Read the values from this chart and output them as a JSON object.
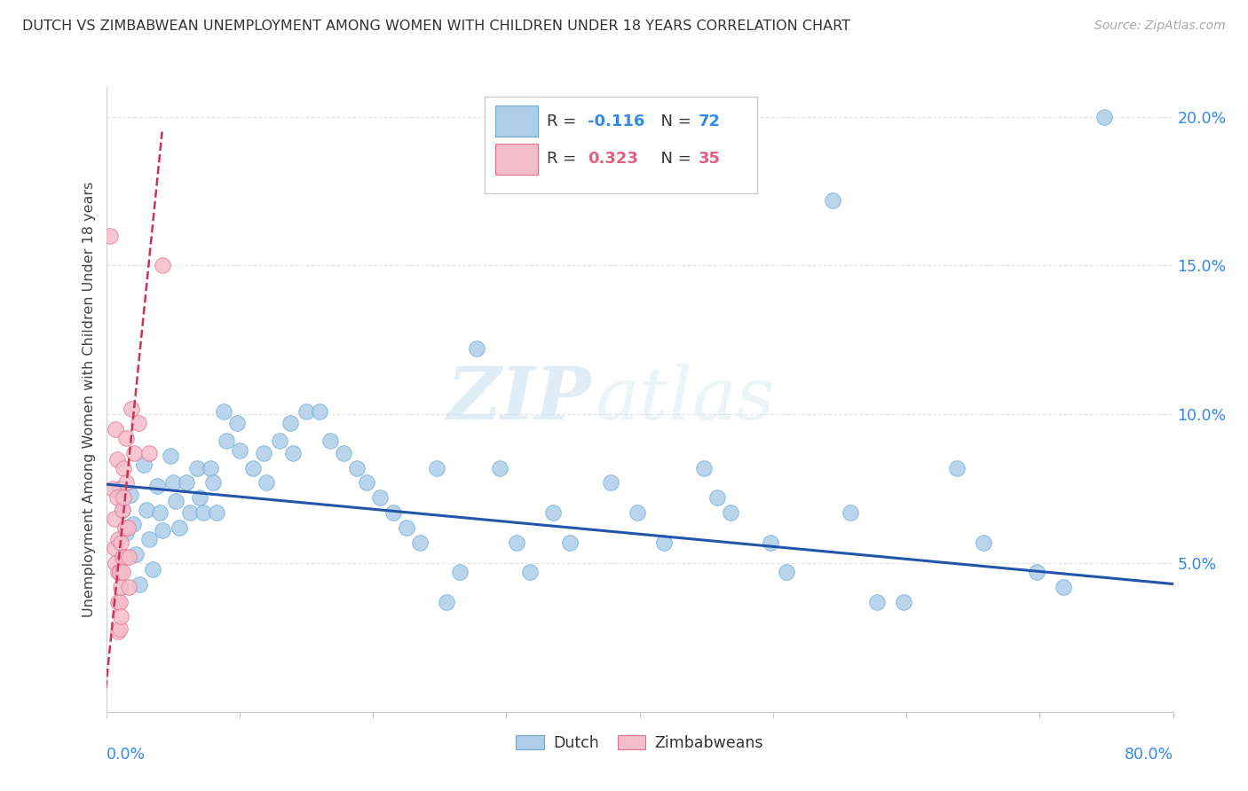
{
  "title": "DUTCH VS ZIMBABWEAN UNEMPLOYMENT AMONG WOMEN WITH CHILDREN UNDER 18 YEARS CORRELATION CHART",
  "source": "Source: ZipAtlas.com",
  "ylabel": "Unemployment Among Women with Children Under 18 years",
  "xlim": [
    0.0,
    0.8
  ],
  "ylim": [
    0.0,
    0.21
  ],
  "yticks": [
    0.05,
    0.1,
    0.15,
    0.2
  ],
  "ytick_labels": [
    "5.0%",
    "10.0%",
    "15.0%",
    "20.0%"
  ],
  "dutch_R": -0.116,
  "dutch_N": 72,
  "zimb_R": 0.323,
  "zimb_N": 35,
  "dutch_color": "#aecde8",
  "dutch_edge": "#6aaad4",
  "zimb_color": "#f5bccb",
  "zimb_edge": "#e07090",
  "trend_dutch_color": "#2255aa",
  "trend_zimb_color": "#cc3355",
  "dutch_scatter": [
    [
      0.01,
      0.075
    ],
    [
      0.012,
      0.068
    ],
    [
      0.015,
      0.06
    ],
    [
      0.018,
      0.073
    ],
    [
      0.02,
      0.063
    ],
    [
      0.022,
      0.053
    ],
    [
      0.025,
      0.043
    ],
    [
      0.028,
      0.083
    ],
    [
      0.03,
      0.068
    ],
    [
      0.032,
      0.058
    ],
    [
      0.035,
      0.048
    ],
    [
      0.038,
      0.076
    ],
    [
      0.04,
      0.067
    ],
    [
      0.042,
      0.061
    ],
    [
      0.048,
      0.086
    ],
    [
      0.05,
      0.077
    ],
    [
      0.052,
      0.071
    ],
    [
      0.055,
      0.062
    ],
    [
      0.06,
      0.077
    ],
    [
      0.063,
      0.067
    ],
    [
      0.068,
      0.082
    ],
    [
      0.07,
      0.072
    ],
    [
      0.073,
      0.067
    ],
    [
      0.078,
      0.082
    ],
    [
      0.08,
      0.077
    ],
    [
      0.083,
      0.067
    ],
    [
      0.088,
      0.101
    ],
    [
      0.09,
      0.091
    ],
    [
      0.098,
      0.097
    ],
    [
      0.1,
      0.088
    ],
    [
      0.11,
      0.082
    ],
    [
      0.118,
      0.087
    ],
    [
      0.12,
      0.077
    ],
    [
      0.13,
      0.091
    ],
    [
      0.138,
      0.097
    ],
    [
      0.14,
      0.087
    ],
    [
      0.15,
      0.101
    ],
    [
      0.16,
      0.101
    ],
    [
      0.168,
      0.091
    ],
    [
      0.178,
      0.087
    ],
    [
      0.188,
      0.082
    ],
    [
      0.195,
      0.077
    ],
    [
      0.205,
      0.072
    ],
    [
      0.215,
      0.067
    ],
    [
      0.225,
      0.062
    ],
    [
      0.235,
      0.057
    ],
    [
      0.248,
      0.082
    ],
    [
      0.255,
      0.037
    ],
    [
      0.265,
      0.047
    ],
    [
      0.278,
      0.122
    ],
    [
      0.295,
      0.082
    ],
    [
      0.308,
      0.057
    ],
    [
      0.318,
      0.047
    ],
    [
      0.335,
      0.067
    ],
    [
      0.348,
      0.057
    ],
    [
      0.378,
      0.077
    ],
    [
      0.398,
      0.067
    ],
    [
      0.418,
      0.057
    ],
    [
      0.448,
      0.082
    ],
    [
      0.458,
      0.072
    ],
    [
      0.468,
      0.067
    ],
    [
      0.498,
      0.057
    ],
    [
      0.51,
      0.047
    ],
    [
      0.545,
      0.172
    ],
    [
      0.558,
      0.067
    ],
    [
      0.578,
      0.037
    ],
    [
      0.598,
      0.037
    ],
    [
      0.638,
      0.082
    ],
    [
      0.658,
      0.057
    ],
    [
      0.698,
      0.047
    ],
    [
      0.718,
      0.042
    ],
    [
      0.748,
      0.2
    ]
  ],
  "zimb_scatter": [
    [
      0.003,
      0.16
    ],
    [
      0.005,
      0.075
    ],
    [
      0.006,
      0.065
    ],
    [
      0.006,
      0.055
    ],
    [
      0.007,
      0.05
    ],
    [
      0.007,
      0.095
    ],
    [
      0.008,
      0.085
    ],
    [
      0.008,
      0.072
    ],
    [
      0.009,
      0.058
    ],
    [
      0.009,
      0.047
    ],
    [
      0.009,
      0.037
    ],
    [
      0.009,
      0.027
    ],
    [
      0.01,
      0.047
    ],
    [
      0.01,
      0.037
    ],
    [
      0.01,
      0.028
    ],
    [
      0.011,
      0.057
    ],
    [
      0.011,
      0.042
    ],
    [
      0.011,
      0.032
    ],
    [
      0.012,
      0.052
    ],
    [
      0.012,
      0.068
    ],
    [
      0.012,
      0.047
    ],
    [
      0.013,
      0.082
    ],
    [
      0.013,
      0.072
    ],
    [
      0.014,
      0.062
    ],
    [
      0.014,
      0.052
    ],
    [
      0.015,
      0.092
    ],
    [
      0.015,
      0.077
    ],
    [
      0.016,
      0.062
    ],
    [
      0.017,
      0.052
    ],
    [
      0.017,
      0.042
    ],
    [
      0.019,
      0.102
    ],
    [
      0.021,
      0.087
    ],
    [
      0.024,
      0.097
    ],
    [
      0.032,
      0.087
    ],
    [
      0.042,
      0.15
    ]
  ],
  "dutch_line": [
    [
      0.0,
      0.0765
    ],
    [
      0.8,
      0.043
    ]
  ],
  "zimb_line": [
    [
      -0.002,
      0.0
    ],
    [
      0.042,
      0.195
    ]
  ],
  "watermark_zip": "ZIP",
  "watermark_atlas": "atlas",
  "bg_color": "#ffffff",
  "grid_color": "#e5e5e5"
}
